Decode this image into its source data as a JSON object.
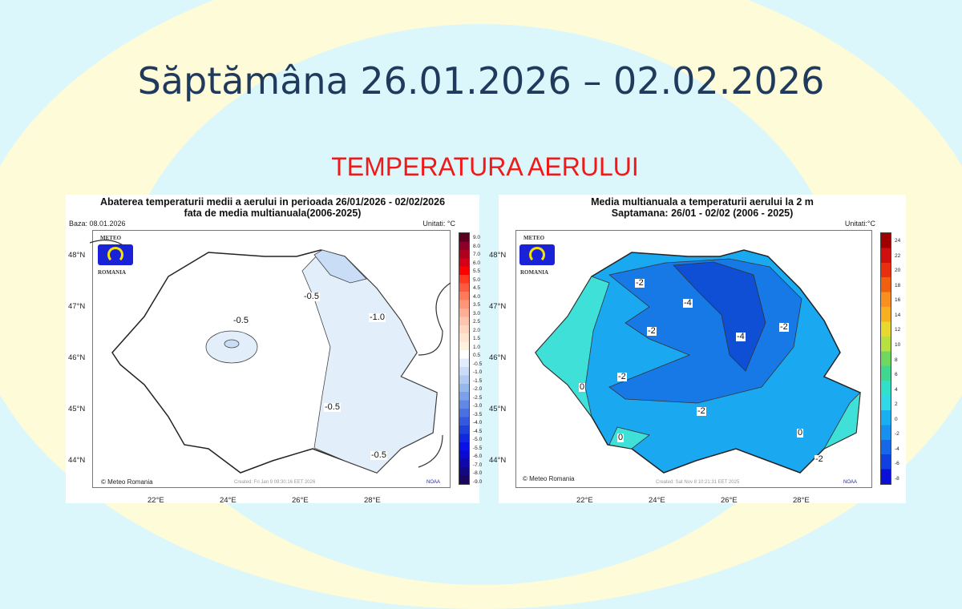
{
  "slide": {
    "title": "Săptămâna 26.01.2026 – 02.02.2026",
    "subtitle": "TEMPERATURA AERULUI"
  },
  "colors": {
    "title": "#1f3a5c",
    "subtitle": "#f01818",
    "background": "#dcf7fb",
    "ellipse": "#fdfbd8"
  },
  "left_map": {
    "title1": "Abaterea temperaturii medii a aerului in perioada 26/01/2026 - 02/02/2026",
    "title2": "fata de media multianuala(2006-2025)",
    "base": "Baza: 08.01.2026",
    "units": "Unitati: °C",
    "logo_top": "METEO",
    "logo_bottom": "ROMANIA",
    "copyright": "© Meteo Romania",
    "created": "Created: Fri Jan 9 09:30:16 EET 2026",
    "agency": "NOAA",
    "colorbar": [
      "9.0",
      "8.0",
      "7.0",
      "6.0",
      "5.5",
      "5.0",
      "4.5",
      "4.0",
      "3.5",
      "3.0",
      "2.5",
      "2.0",
      "1.5",
      "1.0",
      "0.5",
      "-0.5",
      "-1.0",
      "-1.5",
      "-2.0",
      "-2.5",
      "-3.0",
      "-3.5",
      "-4.0",
      "-4.5",
      "-5.0",
      "-5.5",
      "-6.0",
      "-7.0",
      "-8.0",
      "-9.0"
    ],
    "contours": [
      "-0.5",
      "-0.5",
      "-1.0",
      "-0.5",
      "-0.5"
    ],
    "lat": [
      "48°N",
      "47°N",
      "46°N",
      "45°N",
      "44°N"
    ],
    "lon": [
      "22°E",
      "24°E",
      "26°E",
      "28°E"
    ]
  },
  "right_map": {
    "title1": "Media multianuala a temperaturii aerului la 2 m",
    "title2": "Saptamana: 26/01 - 02/02 (2006 - 2025)",
    "units": "Unitati:°C",
    "logo_top": "METEO",
    "logo_bottom": "ROMANIA",
    "copyright": "© Meteo Romania",
    "created": "Created: Sat Nov 8 10:21:31 EET 2025",
    "agency": "NOAA",
    "colorbar": [
      "24",
      "22",
      "20",
      "18",
      "16",
      "14",
      "12",
      "10",
      "8",
      "6",
      "4",
      "2",
      "0",
      "-2",
      "-4",
      "-6",
      "-8"
    ],
    "contours": [
      "-2",
      "-4",
      "-2",
      "-4",
      "-2",
      "-2",
      "0",
      "-2",
      "0",
      "0",
      "-2"
    ],
    "lat": [
      "48°N",
      "47°N",
      "46°N",
      "45°N",
      "44°N"
    ],
    "lon": [
      "22°E",
      "24°E",
      "26°E",
      "28°E"
    ]
  }
}
